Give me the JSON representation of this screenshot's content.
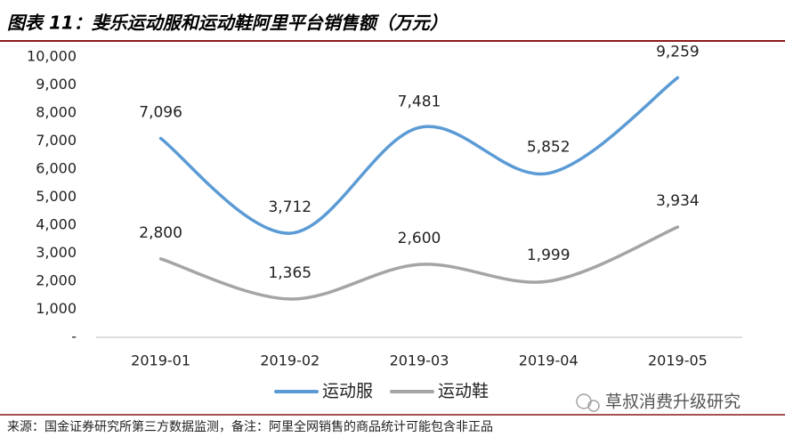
{
  "chart_data": {
    "type": "line",
    "title": "图表 11：斐乐运动服和运动鞋阿里平台销售额（万元）",
    "categories": [
      "2019-01",
      "2019-02",
      "2019-03",
      "2019-04",
      "2019-05"
    ],
    "series": [
      {
        "name": "运动服",
        "color": "#5b9bd5",
        "values": [
          7096,
          3712,
          7481,
          5852,
          9259
        ],
        "value_labels": [
          "7,096",
          "3,712",
          "7,481",
          "5,852",
          "9,259"
        ]
      },
      {
        "name": "运动鞋",
        "color": "#a5a5a5",
        "values": [
          2800,
          1365,
          2600,
          1999,
          3934
        ],
        "value_labels": [
          "2,800",
          "1,365",
          "2,600",
          "1,999",
          "3,934"
        ]
      }
    ],
    "ylim": [
      0,
      10000
    ],
    "yticks": [
      {
        "value": 0,
        "label": "-"
      },
      {
        "value": 1000,
        "label": "1,000"
      },
      {
        "value": 2000,
        "label": "2,000"
      },
      {
        "value": 3000,
        "label": "3,000"
      },
      {
        "value": 4000,
        "label": "4,000"
      },
      {
        "value": 5000,
        "label": "5,000"
      },
      {
        "value": 6000,
        "label": "6,000"
      },
      {
        "value": 7000,
        "label": "7,000"
      },
      {
        "value": 8000,
        "label": "8,000"
      },
      {
        "value": 9000,
        "label": "9,000"
      },
      {
        "value": 10000,
        "label": "10,000"
      }
    ],
    "smooth": true,
    "legend": "bottom",
    "watermark": "草叔消费升级研究",
    "source": "来源：国金证券研究所第三方数据监测，备注：阿里全网销售的商品统计可能包含非正品"
  }
}
